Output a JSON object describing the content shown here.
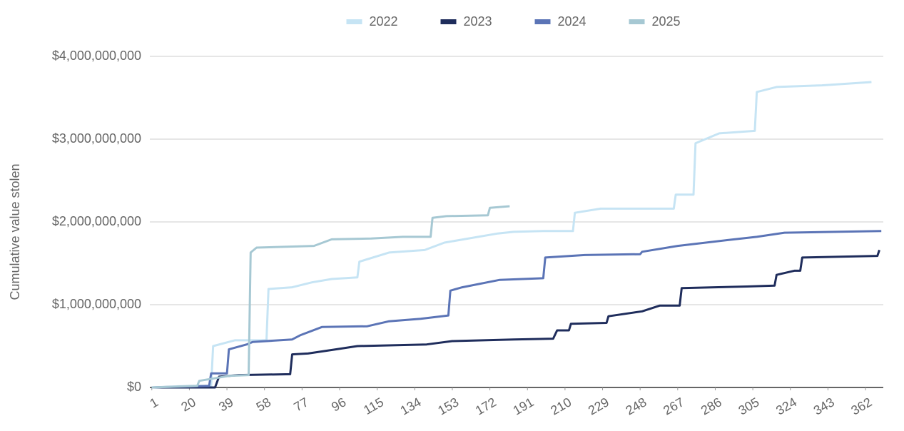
{
  "chart_data": {
    "type": "line",
    "y_label": "Cumulative value stolen",
    "xlim": [
      0,
      371
    ],
    "xticks": [
      1,
      20,
      39,
      58,
      77,
      96,
      115,
      134,
      153,
      172,
      191,
      210,
      229,
      248,
      267,
      286,
      305,
      324,
      343,
      362
    ],
    "ylim": [
      0,
      4000000000
    ],
    "yticks": [
      {
        "value": 0,
        "label": "$0"
      },
      {
        "value": 1000000000,
        "label": "$1,000,000,000"
      },
      {
        "value": 2000000000,
        "label": "$2,000,000,000"
      },
      {
        "value": 3000000000,
        "label": "$3,000,000,000"
      },
      {
        "value": 4000000000,
        "label": "$4,000,000,000"
      }
    ],
    "grid": true,
    "legend": "top",
    "series": [
      {
        "name": "2022",
        "color": "#c6e4f4",
        "x": [
          1,
          20,
          31,
          32,
          43,
          59,
          60,
          72,
          82,
          92,
          105,
          106,
          121,
          139,
          149,
          176,
          184,
          199,
          214,
          215,
          228,
          265,
          266,
          275,
          276,
          288,
          306,
          307,
          317,
          340,
          365
        ],
        "values": [
          0,
          20000000,
          20000000,
          500000000,
          570000000,
          570000000,
          1190000000,
          1210000000,
          1270000000,
          1310000000,
          1330000000,
          1520000000,
          1630000000,
          1660000000,
          1750000000,
          1860000000,
          1880000000,
          1890000000,
          1890000000,
          2110000000,
          2160000000,
          2160000000,
          2330000000,
          2330000000,
          2950000000,
          3070000000,
          3100000000,
          3570000000,
          3630000000,
          3650000000,
          3690000000
        ]
      },
      {
        "name": "2023",
        "color": "#1f2d5c",
        "x": [
          1,
          33,
          35,
          45,
          71,
          72,
          80,
          94,
          105,
          140,
          153,
          184,
          204,
          206,
          212,
          213,
          231,
          232,
          249,
          258,
          268,
          269,
          302,
          316,
          317,
          326,
          329,
          330,
          368,
          369
        ],
        "values": [
          0,
          0,
          130000000,
          150000000,
          160000000,
          400000000,
          410000000,
          460000000,
          500000000,
          520000000,
          560000000,
          580000000,
          590000000,
          690000000,
          690000000,
          770000000,
          780000000,
          860000000,
          920000000,
          990000000,
          990000000,
          1200000000,
          1220000000,
          1230000000,
          1360000000,
          1410000000,
          1410000000,
          1570000000,
          1590000000,
          1660000000
        ]
      },
      {
        "name": "2024",
        "color": "#5b74b6",
        "x": [
          1,
          30,
          31,
          39,
          40,
          49,
          52,
          72,
          76,
          87,
          110,
          121,
          137,
          151,
          152,
          158,
          177,
          199,
          200,
          220,
          248,
          249,
          267,
          292,
          307,
          321,
          370
        ],
        "values": [
          0,
          20000000,
          170000000,
          170000000,
          460000000,
          520000000,
          550000000,
          580000000,
          630000000,
          730000000,
          740000000,
          800000000,
          830000000,
          870000000,
          1170000000,
          1210000000,
          1300000000,
          1320000000,
          1570000000,
          1600000000,
          1610000000,
          1640000000,
          1710000000,
          1780000000,
          1820000000,
          1870000000,
          1890000000
        ]
      },
      {
        "name": "2025",
        "color": "#a6c8d3",
        "x": [
          1,
          24,
          25,
          40,
          50,
          51,
          54,
          83,
          92,
          112,
          128,
          142,
          143,
          150,
          171,
          172,
          182
        ],
        "values": [
          0,
          20000000,
          80000000,
          140000000,
          150000000,
          1630000000,
          1690000000,
          1710000000,
          1790000000,
          1800000000,
          1820000000,
          1820000000,
          2050000000,
          2070000000,
          2080000000,
          2170000000,
          2190000000
        ]
      }
    ]
  }
}
